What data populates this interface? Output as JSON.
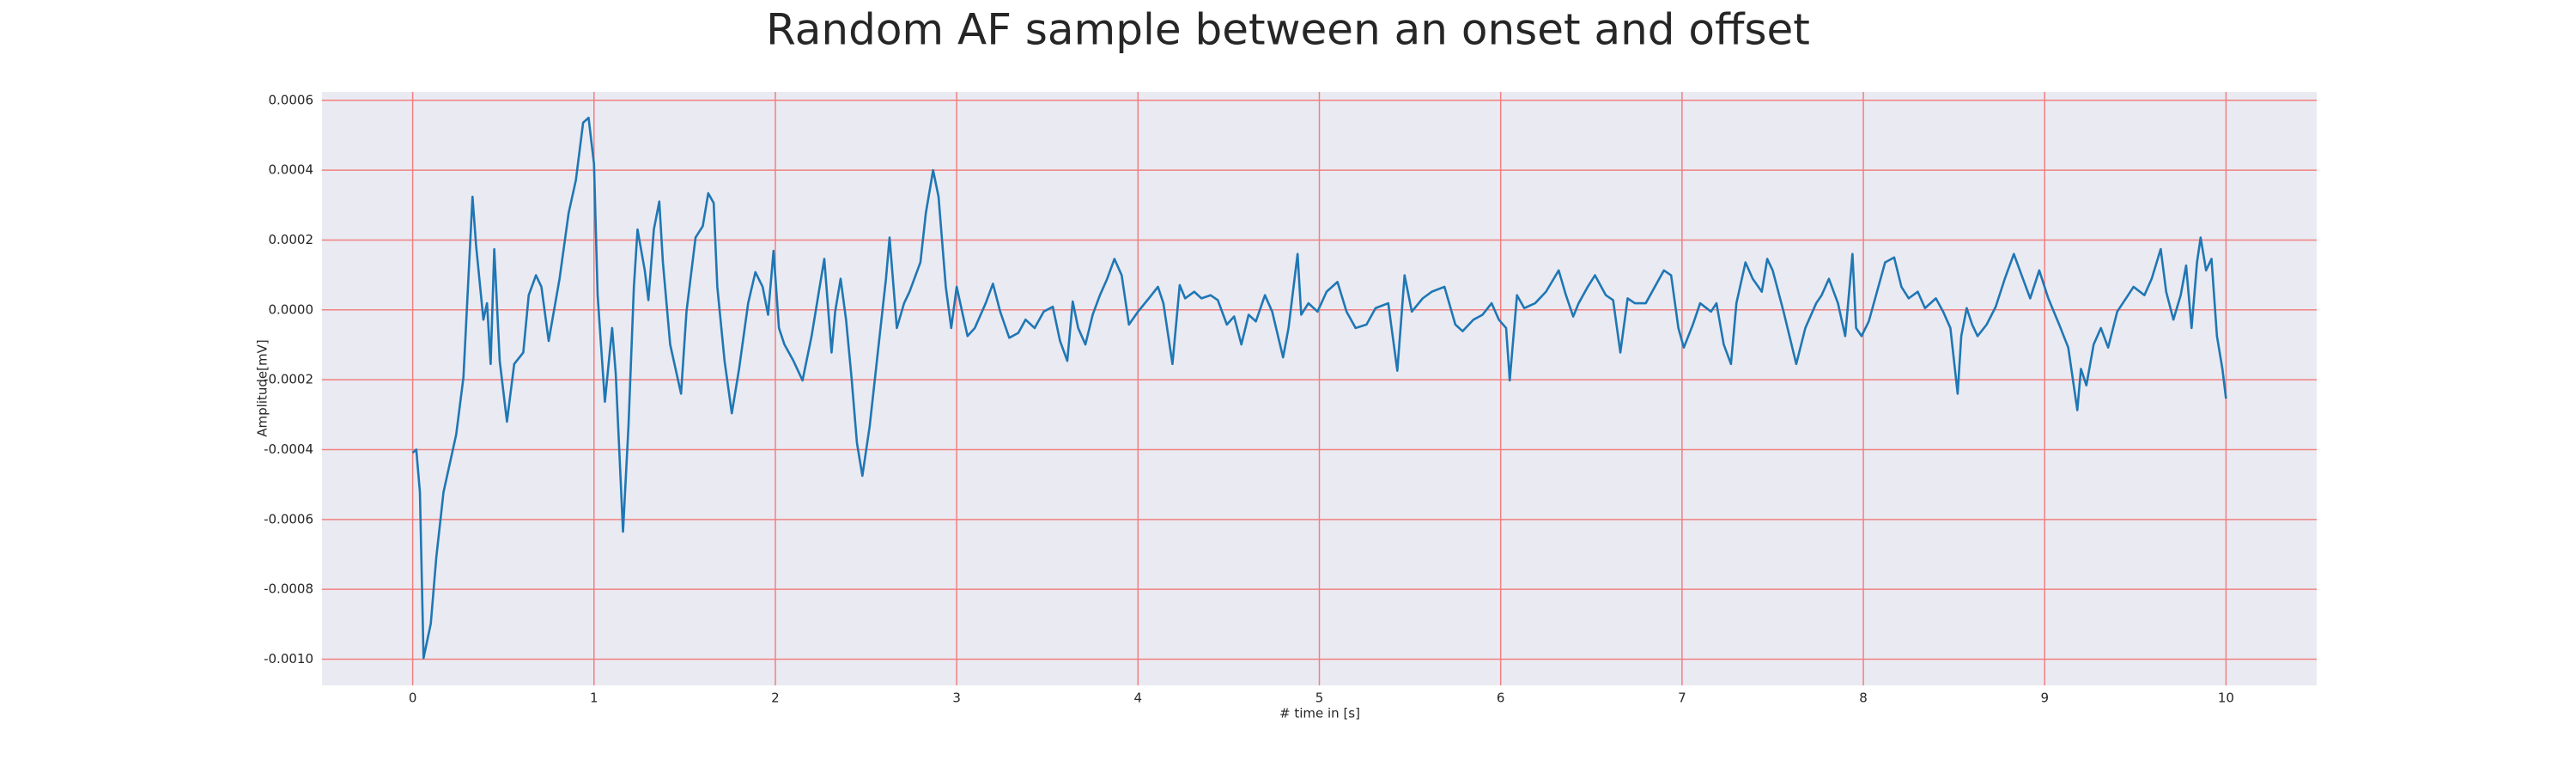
{
  "chart_data": {
    "type": "line",
    "title": "Random AF sample between an onset and offset",
    "xlabel": "# time in [s]",
    "ylabel": "Amplitude[mV]",
    "color": "#1f77b4",
    "grid": true,
    "grid_color": "#f08080",
    "background": "#eaeaf2",
    "xlim": [
      -0.5,
      10.5
    ],
    "xticks": [
      0,
      1,
      2,
      3,
      4,
      5,
      6,
      7,
      8,
      9,
      10
    ],
    "ylim": [
      -0.001075,
      0.000624
    ],
    "yticks": [
      {
        "value": -0.001,
        "label": "-0.0010"
      },
      -0.0008,
      -0.0006,
      -0.0004,
      -0.0002,
      {
        "value": 0,
        "label": "0.0000"
      },
      0.0002,
      0.0004,
      0.0006
    ],
    "x": [
      0.0,
      0.02,
      0.04,
      0.06,
      0.1,
      0.13,
      0.17,
      0.24,
      0.28,
      0.33,
      0.35,
      0.39,
      0.41,
      0.43,
      0.45,
      0.48,
      0.52,
      0.56,
      0.61,
      0.64,
      0.68,
      0.71,
      0.75,
      0.81,
      0.86,
      0.9,
      0.94,
      0.97,
      1.0,
      1.02,
      1.06,
      1.1,
      1.12,
      1.16,
      1.19,
      1.22,
      1.24,
      1.28,
      1.3,
      1.33,
      1.36,
      1.38,
      1.42,
      1.48,
      1.51,
      1.56,
      1.6,
      1.63,
      1.66,
      1.68,
      1.72,
      1.76,
      1.8,
      1.85,
      1.89,
      1.93,
      1.96,
      1.99,
      2.02,
      2.05,
      2.1,
      2.15,
      2.2,
      2.24,
      2.27,
      2.31,
      2.33,
      2.36,
      2.39,
      2.42,
      2.45,
      2.48,
      2.52,
      2.57,
      2.61,
      2.63,
      2.67,
      2.71,
      2.74,
      2.8,
      2.83,
      2.87,
      2.9,
      2.94,
      2.97,
      3.0,
      3.03,
      3.06,
      3.1,
      3.16,
      3.2,
      3.24,
      3.29,
      3.34,
      3.38,
      3.43,
      3.48,
      3.53,
      3.57,
      3.61,
      3.64,
      3.67,
      3.71,
      3.75,
      3.79,
      3.83,
      3.87,
      3.91,
      3.95,
      4.0,
      4.06,
      4.11,
      4.14,
      4.19,
      4.23,
      4.26,
      4.31,
      4.35,
      4.4,
      4.44,
      4.49,
      4.53,
      4.57,
      4.61,
      4.65,
      4.7,
      4.74,
      4.8,
      4.83,
      4.88,
      4.9,
      4.94,
      4.99,
      5.04,
      5.1,
      5.15,
      5.2,
      5.26,
      5.31,
      5.38,
      5.43,
      5.47,
      5.51,
      5.57,
      5.62,
      5.69,
      5.75,
      5.79,
      5.85,
      5.9,
      5.95,
      5.99,
      6.03,
      6.05,
      6.09,
      6.13,
      6.19,
      6.25,
      6.32,
      6.36,
      6.4,
      6.43,
      6.48,
      6.52,
      6.58,
      6.62,
      6.66,
      6.7,
      6.74,
      6.8,
      6.85,
      6.9,
      6.94,
      6.98,
      7.01,
      7.06,
      7.1,
      7.16,
      7.19,
      7.23,
      7.27,
      7.3,
      7.35,
      7.39,
      7.44,
      7.47,
      7.5,
      7.56,
      7.63,
      7.68,
      7.74,
      7.77,
      7.81,
      7.86,
      7.9,
      7.94,
      7.96,
      7.99,
      8.03,
      8.07,
      8.12,
      8.17,
      8.21,
      8.25,
      8.3,
      8.34,
      8.4,
      8.44,
      8.48,
      8.52,
      8.54,
      8.57,
      8.6,
      8.63,
      8.68,
      8.73,
      8.78,
      8.83,
      8.88,
      8.92,
      8.97,
      9.02,
      9.08,
      9.13,
      9.18,
      9.2,
      9.23,
      9.27,
      9.31,
      9.35,
      9.4,
      9.46,
      9.49,
      9.55,
      9.59,
      9.64,
      9.67,
      9.71,
      9.75,
      9.78,
      9.81,
      9.84,
      9.86,
      9.89,
      9.92,
      9.95,
      9.98,
      10.0
    ],
    "values": [
      -0.000409,
      -0.0004,
      -0.000522,
      -0.000997,
      -0.000898,
      -0.00071,
      -0.000522,
      -0.000357,
      -0.000193,
      0.000324,
      0.000183,
      -2.8e-05,
      1.9e-05,
      -0.000155,
      0.000174,
      -0.000146,
      -0.00032,
      -0.000155,
      -0.000122,
      4.2e-05,
      9.9e-05,
      6.6e-05,
      -8.9e-05,
      8.9e-05,
      0.000277,
      0.000371,
      0.000536,
      0.00055,
      0.000418,
      4.2e-05,
      -0.000263,
      -5.2e-05,
      -0.000183,
      -0.000635,
      -0.000334,
      6.6e-05,
      0.00023,
      0.000113,
      2.8e-05,
      0.00023,
      0.00031,
      0.000136,
      -9.9e-05,
      -0.00024,
      -5e-06,
      0.000207,
      0.00024,
      0.000334,
      0.000306,
      6.6e-05,
      -0.000146,
      -0.000296,
      -0.000169,
      1.9e-05,
      0.000108,
      6.6e-05,
      -1.4e-05,
      0.000169,
      -5.2e-05,
      -9.9e-05,
      -0.000146,
      -0.000202,
      -7.5e-05,
      5.2e-05,
      0.000146,
      -0.000122,
      -5e-06,
      8.9e-05,
      -2.8e-05,
      -0.000193,
      -0.000381,
      -0.000475,
      -0.000334,
      -9.9e-05,
      8.9e-05,
      0.000207,
      -5.2e-05,
      1.9e-05,
      5.2e-05,
      0.000136,
      0.000277,
      0.0004,
      0.000324,
      6.6e-05,
      -5.2e-05,
      6.6e-05,
      -5e-06,
      -7.5e-05,
      -5.2e-05,
      1.9e-05,
      7.5e-05,
      -5e-06,
      -8e-05,
      -6.6e-05,
      -2.8e-05,
      -5.2e-05,
      -5e-06,
      9e-06,
      -8.9e-05,
      -0.000146,
      2.4e-05,
      -5.2e-05,
      -9.9e-05,
      -1.4e-05,
      4.2e-05,
      8.9e-05,
      0.000146,
      9.9e-05,
      -4.2e-05,
      -5e-06,
      3.3e-05,
      6.6e-05,
      1.9e-05,
      -0.000155,
      7.1e-05,
      3.3e-05,
      5.2e-05,
      3.3e-05,
      4.2e-05,
      2.8e-05,
      -4.2e-05,
      -1.9e-05,
      -9.9e-05,
      -1.4e-05,
      -3.3e-05,
      4.2e-05,
      -5e-06,
      -0.000136,
      -5.2e-05,
      0.00016,
      -1.4e-05,
      1.9e-05,
      -5e-06,
      5.2e-05,
      8e-05,
      -5e-06,
      -5.2e-05,
      -4.2e-05,
      5e-06,
      1.9e-05,
      -0.000174,
      9.9e-05,
      -5e-06,
      3.3e-05,
      5.2e-05,
      6.6e-05,
      -4.2e-05,
      -6.1e-05,
      -2.8e-05,
      -1.4e-05,
      1.9e-05,
      -2.8e-05,
      -5.2e-05,
      -0.000202,
      4.2e-05,
      5e-06,
      1.9e-05,
      5.2e-05,
      0.000113,
      4.2e-05,
      -1.9e-05,
      1.9e-05,
      6.6e-05,
      9.9e-05,
      4.2e-05,
      2.8e-05,
      -0.000122,
      3.3e-05,
      1.9e-05,
      1.9e-05,
      6.6e-05,
      0.000113,
      9.9e-05,
      -5.2e-05,
      -0.000108,
      -4.2e-05,
      1.9e-05,
      -5e-06,
      1.9e-05,
      -9.9e-05,
      -0.000155,
      1.9e-05,
      0.000136,
      8.9e-05,
      5.2e-05,
      0.000146,
      0.000113,
      -5e-06,
      -0.000155,
      -5.2e-05,
      1.9e-05,
      4.2e-05,
      8.9e-05,
      1.9e-05,
      -7.5e-05,
      0.00016,
      -5.2e-05,
      -7.5e-05,
      -3.3e-05,
      4.2e-05,
      0.000136,
      0.00015,
      6.6e-05,
      3.3e-05,
      5.2e-05,
      5e-06,
      3.3e-05,
      -5e-06,
      -5.2e-05,
      -0.00024,
      -7.5e-05,
      5e-06,
      -4.2e-05,
      -7.5e-05,
      -4.2e-05,
      9e-06,
      8.9e-05,
      0.00016,
      8.9e-05,
      3.3e-05,
      0.000113,
      3.3e-05,
      -4.2e-05,
      -0.000108,
      -0.000287,
      -0.000169,
      -0.000216,
      -9.9e-05,
      -5.2e-05,
      -0.000108,
      -5e-06,
      4.2e-05,
      6.6e-05,
      4.2e-05,
      8.9e-05,
      0.000174,
      5.2e-05,
      -2.8e-05,
      4.2e-05,
      0.000127,
      -5.2e-05,
      0.000136,
      0.000207,
      0.000113,
      0.000146,
      -7.5e-05,
      -0.000169,
      -0.000254
    ]
  }
}
